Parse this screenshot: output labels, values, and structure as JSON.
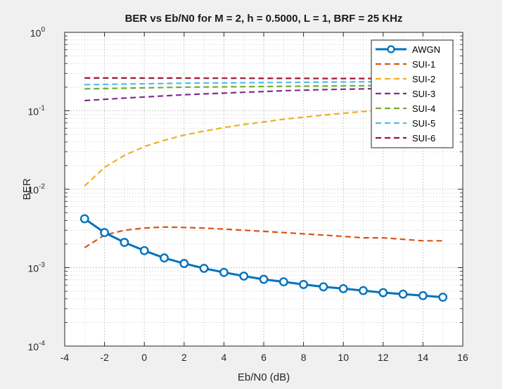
{
  "chart_data": {
    "type": "line",
    "title": "BER vs Eb/N0 for M = 2, h = 0.5000, L = 1, BRF = 25 KHz",
    "xlabel": "Eb/N0 (dB)",
    "ylabel": "BER",
    "yscale": "log",
    "xlim": [
      -4,
      16
    ],
    "ylim": [
      0.0001,
      1
    ],
    "xticks": [
      -4,
      -2,
      0,
      2,
      4,
      6,
      8,
      10,
      12,
      14,
      16
    ],
    "yticks": [
      {
        "base": "10",
        "exp": "0",
        "value": 1
      },
      {
        "base": "10",
        "exp": "-1",
        "value": 0.1
      },
      {
        "base": "10",
        "exp": "-2",
        "value": 0.01
      },
      {
        "base": "10",
        "exp": "-3",
        "value": 0.001
      },
      {
        "base": "10",
        "exp": "-4",
        "value": 0.0001
      }
    ],
    "grid": true,
    "minor_grid": true,
    "legend_position": "top-right",
    "x": [
      -3,
      -2,
      -1,
      0,
      1,
      2,
      3,
      4,
      5,
      6,
      7,
      8,
      9,
      10,
      11,
      12,
      13,
      14,
      15
    ],
    "series": [
      {
        "name": "AWGN",
        "color": "#0072BD",
        "style": "solid",
        "marker": "circle",
        "values": [
          0.0042,
          0.0028,
          0.0021,
          0.00165,
          0.00133,
          0.00113,
          0.00098,
          0.00087,
          0.00078,
          0.00071,
          0.00066,
          0.00061,
          0.00057,
          0.00054,
          0.00051,
          0.00048,
          0.00046,
          0.00044,
          0.00042
        ]
      },
      {
        "name": "SUI-1",
        "color": "#D95319",
        "style": "dashed",
        "values": [
          0.0018,
          0.0026,
          0.003,
          0.0032,
          0.0033,
          0.00325,
          0.0032,
          0.0031,
          0.003,
          0.0029,
          0.0028,
          0.0027,
          0.0026,
          0.0025,
          0.0024,
          0.0024,
          0.0023,
          0.0022,
          0.0022
        ]
      },
      {
        "name": "SUI-2",
        "color": "#EDB120",
        "style": "dashed",
        "values": [
          0.011,
          0.019,
          0.027,
          0.035,
          0.042,
          0.049,
          0.055,
          0.061,
          0.067,
          0.072,
          0.078,
          0.083,
          0.088,
          0.093,
          0.098,
          0.103,
          0.108,
          0.112,
          0.116
        ]
      },
      {
        "name": "SUI-3",
        "color": "#7E2F8E",
        "style": "dashed",
        "values": [
          0.135,
          0.14,
          0.145,
          0.15,
          0.155,
          0.16,
          0.164,
          0.168,
          0.172,
          0.176,
          0.18,
          0.183,
          0.186,
          0.188,
          0.19,
          0.192,
          0.194,
          0.196,
          0.198
        ]
      },
      {
        "name": "SUI-4",
        "color": "#77AC30",
        "style": "dashed",
        "values": [
          0.19,
          0.192,
          0.194,
          0.196,
          0.198,
          0.2,
          0.201,
          0.202,
          0.203,
          0.204,
          0.205,
          0.206,
          0.207,
          0.208,
          0.209,
          0.21,
          0.211,
          0.212,
          0.213
        ]
      },
      {
        "name": "SUI-5",
        "color": "#4DBEEE",
        "style": "dashed",
        "values": [
          0.215,
          0.217,
          0.219,
          0.221,
          0.223,
          0.225,
          0.226,
          0.227,
          0.228,
          0.229,
          0.23,
          0.231,
          0.232,
          0.233,
          0.234,
          0.235,
          0.236,
          0.237,
          0.238
        ]
      },
      {
        "name": "SUI-6",
        "color": "#A2142F",
        "style": "dashed",
        "values": [
          0.262,
          0.262,
          0.262,
          0.261,
          0.261,
          0.261,
          0.26,
          0.26,
          0.26,
          0.259,
          0.259,
          0.259,
          0.258,
          0.258,
          0.258,
          0.257,
          0.257,
          0.257,
          0.256
        ]
      }
    ]
  }
}
